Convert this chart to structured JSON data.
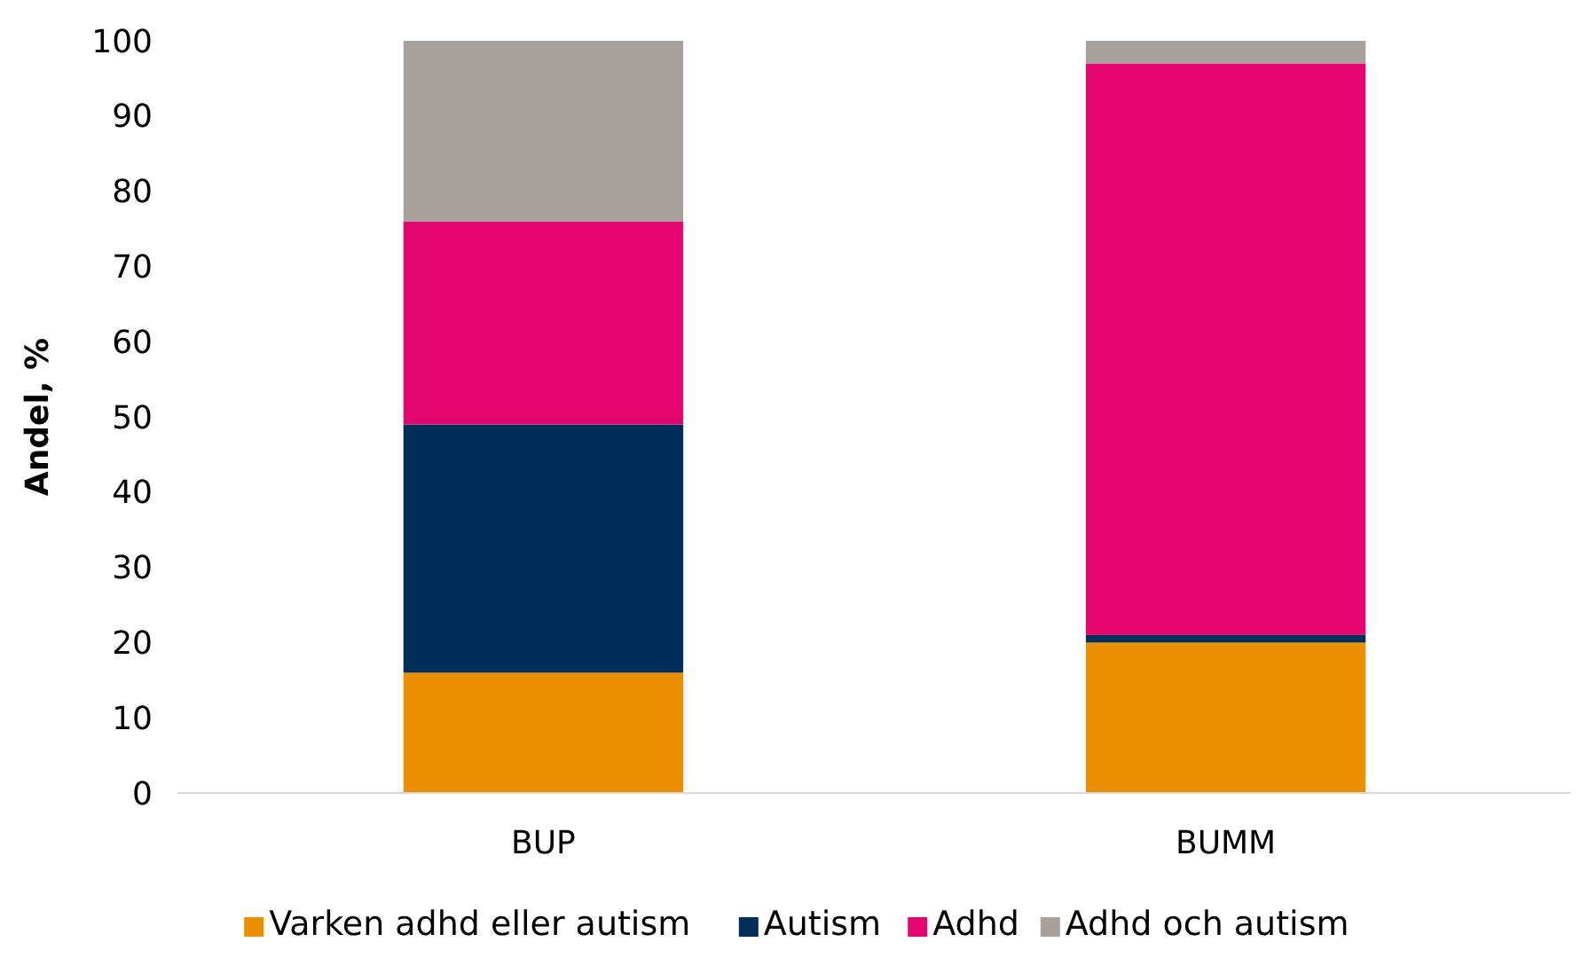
{
  "chart_data": {
    "type": "bar",
    "stacked": true,
    "ylabel": "Andel, %",
    "categories": [
      "BUP",
      "BUMM"
    ],
    "series": [
      {
        "name": "Varken adhd eller autism",
        "color": "#ea8f00",
        "values": [
          16,
          20
        ]
      },
      {
        "name": "Autism",
        "color": "#002e5a",
        "values": [
          33,
          1
        ]
      },
      {
        "name": "Adhd",
        "color": "#e3066e",
        "values": [
          27,
          76
        ]
      },
      {
        "name": "Adhd och autism",
        "color": "#a8a19b",
        "values": [
          24,
          3
        ]
      }
    ],
    "ylim": [
      0,
      100
    ],
    "yticks": [
      0,
      10,
      20,
      30,
      40,
      50,
      60,
      70,
      80,
      90,
      100
    ],
    "grid": false,
    "legend": "bottom"
  }
}
